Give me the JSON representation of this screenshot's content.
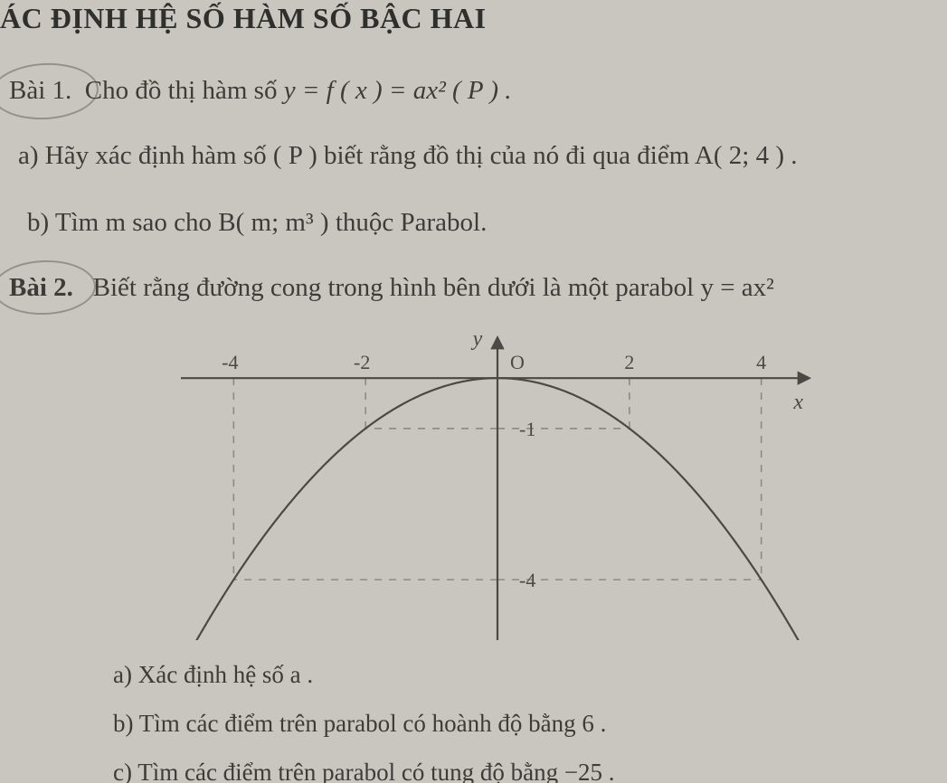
{
  "heading": "ÁC ĐỊNH HỆ SỐ HÀM SỐ BẬC HAI",
  "bai1": {
    "label": "Bài 1.",
    "text_before": "Cho đồ thị hàm số ",
    "formula": "y = f ( x ) = ax²  ( P ) ."
  },
  "bai1a": {
    "label": "a) Hãy xác định hàm số ( P )  biết rằng đồ thị của nó đi qua điểm  A( 2; 4 ) ."
  },
  "bai1b": {
    "label": "b) Tìm m sao cho B( m; m³ ) thuộc Parabol."
  },
  "bai2": {
    "label": "Bài 2.",
    "text": "Biết rằng đường cong trong hình bên dưới là một parabol  y = ax²"
  },
  "bai2a": {
    "label": "a) Xác định hệ số a ."
  },
  "bai2b": {
    "label": "b) Tìm các điểm trên parabol có hoành độ bằng 6 ."
  },
  "bai2c": {
    "label": "c) Tìm các điểm trên parabol có tung độ bằng −25 ."
  },
  "chart": {
    "type": "parabola",
    "equation": "y = a x^2",
    "a_value": -0.25,
    "xlim": [
      -4.8,
      4.8
    ],
    "ylim": [
      -5.2,
      0.9
    ],
    "xtick_labels": [
      "-4",
      "-2",
      "O",
      "2",
      "4"
    ],
    "xtick_values": [
      -4,
      -2,
      0,
      2,
      4
    ],
    "ytick_labels": [
      "-1",
      "-4"
    ],
    "ytick_values": [
      -1,
      -4
    ],
    "y_axis_label": "y",
    "x_axis_label": "x",
    "axis_color": "#4a4946",
    "curve_color": "#4a4946",
    "dash_color": "#8b8a85",
    "background_color": "#c9c6bf",
    "tick_fontsize": 22,
    "axis_label_fontsize": 24,
    "curve_width": 2.2,
    "axis_width": 2.2,
    "dash_pattern": "8,8",
    "guide_points": [
      {
        "x": -4,
        "y": -4
      },
      {
        "x": 4,
        "y": -4
      },
      {
        "x": -2,
        "y": -1
      },
      {
        "x": 2,
        "y": -1
      }
    ]
  },
  "colors": {
    "page_bg": "#c9c6bf",
    "text": "#3d3c39",
    "heading": "#2f2f2d",
    "annot": "#7b7a74"
  }
}
